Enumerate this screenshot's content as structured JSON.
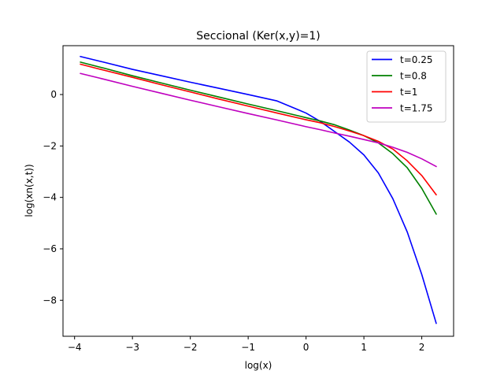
{
  "chart_data": {
    "type": "line",
    "title": "Seccional (Ker(x,y)=1)",
    "xlabel": "log(x)",
    "ylabel": "log(xn(x,t))",
    "xlim": [
      -4.2,
      2.55
    ],
    "ylim": [
      -9.4,
      1.9
    ],
    "xticks": [
      -4,
      -3,
      -2,
      -1,
      0,
      1,
      2
    ],
    "yticks": [
      -8,
      -6,
      -4,
      -2,
      0
    ],
    "tick_labels": {
      "x": [
        "−4",
        "−3",
        "−2",
        "−1",
        "0",
        "1",
        "2"
      ],
      "y": [
        "−8",
        "−6",
        "−4",
        "−2",
        "0"
      ]
    },
    "legend_position": "top-right",
    "grid": false,
    "x": [
      -3.9,
      -3.5,
      -3.0,
      -2.5,
      -2.0,
      -1.5,
      -1.0,
      -0.5,
      0.0,
      0.25,
      0.5,
      0.75,
      1.0,
      1.25,
      1.5,
      1.75,
      2.0,
      2.25
    ],
    "series": [
      {
        "name": "t=0.25",
        "color": "#0000ff",
        "values": [
          1.48,
          1.26,
          0.98,
          0.73,
          0.48,
          0.24,
          0.0,
          -0.25,
          -0.72,
          -1.05,
          -1.45,
          -1.85,
          -2.35,
          -3.05,
          -4.05,
          -5.35,
          -7.0,
          -8.9
        ]
      },
      {
        "name": "t=0.8",
        "color": "#008000",
        "values": [
          1.26,
          1.03,
          0.73,
          0.45,
          0.17,
          -0.1,
          -0.37,
          -0.63,
          -0.9,
          -1.03,
          -1.18,
          -1.38,
          -1.6,
          -1.88,
          -2.3,
          -2.85,
          -3.65,
          -4.65
        ]
      },
      {
        "name": "t=1",
        "color": "#ff0000",
        "values": [
          1.18,
          0.95,
          0.67,
          0.38,
          0.1,
          -0.18,
          -0.45,
          -0.72,
          -0.98,
          -1.1,
          -1.25,
          -1.42,
          -1.6,
          -1.82,
          -2.12,
          -2.58,
          -3.15,
          -3.9
        ]
      },
      {
        "name": "t=1.75",
        "color": "#bf00bf",
        "values": [
          0.82,
          0.6,
          0.32,
          0.05,
          -0.22,
          -0.48,
          -0.74,
          -0.99,
          -1.25,
          -1.37,
          -1.5,
          -1.62,
          -1.75,
          -1.88,
          -2.05,
          -2.25,
          -2.5,
          -2.8
        ]
      }
    ]
  }
}
